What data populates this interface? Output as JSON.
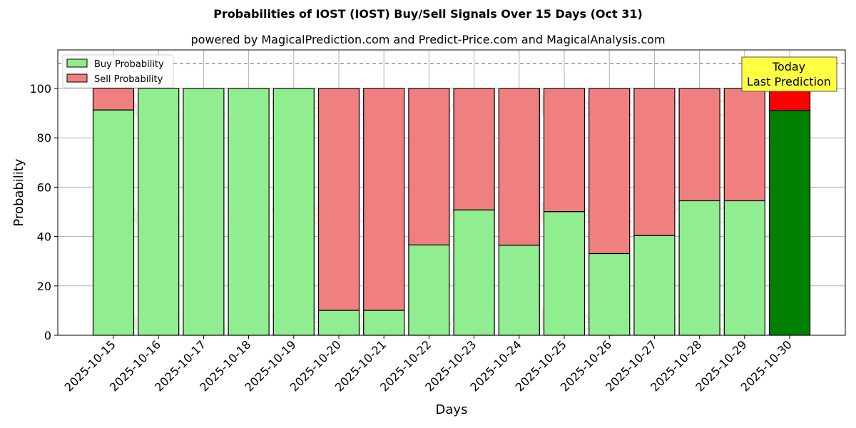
{
  "chart_data": {
    "type": "bar",
    "stacked": true,
    "title": "Probabilities of IOST (IOST) Buy/Sell Signals Over 15 Days (Oct 31)",
    "subtitle": "powered by MagicalPrediction.com and Predict-Price.com and MagicalAnalysis.com",
    "xlabel": "Days",
    "ylabel": "Probability",
    "ylim": [
      0,
      115
    ],
    "yticks": [
      0,
      20,
      40,
      60,
      80,
      100
    ],
    "grid": true,
    "legend_position": "upper left",
    "reference_line": 110,
    "categories": [
      "2025-10-15",
      "2025-10-16",
      "2025-10-17",
      "2025-10-18",
      "2025-10-19",
      "2025-10-20",
      "2025-10-21",
      "2025-10-22",
      "2025-10-23",
      "2025-10-24",
      "2025-10-25",
      "2025-10-26",
      "2025-10-27",
      "2025-10-28",
      "2025-10-29",
      "2025-10-30"
    ],
    "series": [
      {
        "name": "Buy Probability",
        "color": "#90ee90",
        "values": [
          91.3,
          100,
          100,
          100,
          100,
          10.1,
          10.1,
          36.6,
          50.8,
          36.5,
          50.1,
          33.1,
          40.4,
          54.5,
          54.5,
          91.1
        ]
      },
      {
        "name": "Sell Probability",
        "color": "#f08080",
        "values": [
          8.7,
          0,
          0,
          0,
          0,
          89.9,
          89.9,
          63.4,
          49.2,
          63.5,
          49.9,
          66.9,
          59.6,
          45.5,
          45.5,
          8.9
        ]
      }
    ],
    "highlight": {
      "index": 15,
      "buy_color": "#008000",
      "sell_color": "#ff0000"
    },
    "annotation": {
      "text_line1": "Today",
      "text_line2": "Last Prediction",
      "background": "#ffff44"
    },
    "watermarks": [
      "MagicalAnalysis.com",
      "MagicalPrediction.com"
    ]
  }
}
